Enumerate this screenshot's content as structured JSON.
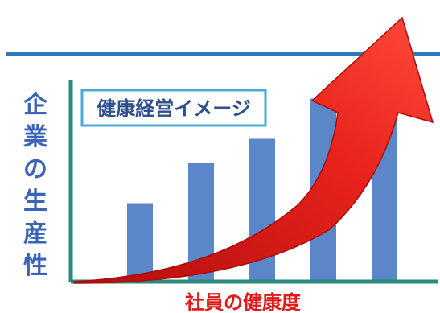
{
  "chart_data": {
    "type": "bar",
    "title": "健康経営イメージ",
    "xlabel": "社員の健康度",
    "ylabel": "企業の生産性",
    "categories": [
      "",
      "",
      "",
      "",
      ""
    ],
    "values": [
      39,
      59,
      71,
      91,
      80
    ],
    "ylim": [
      0,
      100
    ],
    "grid": false,
    "trend_arrow": true
  },
  "colors": {
    "bar": "#5b86c7",
    "axis": "#2a8a7a",
    "top_line": "#2f78c0",
    "arrow": "#e8231c",
    "title_border": "#4aa9d6",
    "ylabel": "#3a64b8",
    "xlabel": "#e01818"
  }
}
